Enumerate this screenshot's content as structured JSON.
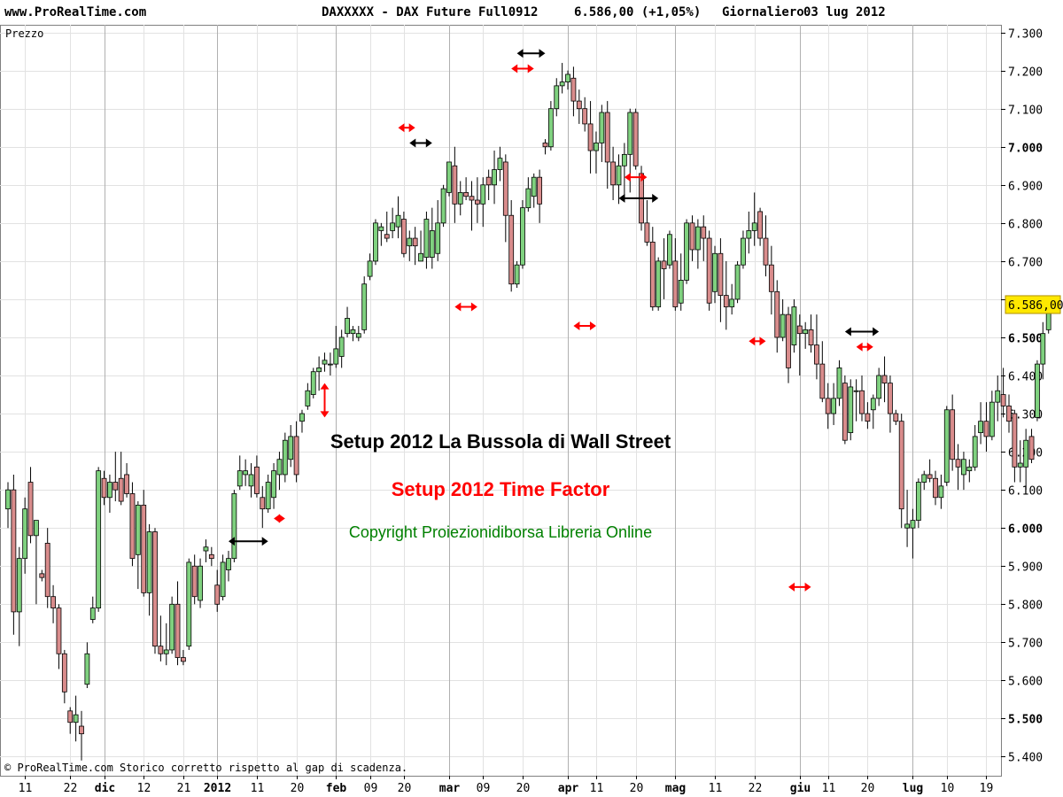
{
  "header": {
    "site": "www.ProRealTime.com",
    "instrument": "DAXXXXX - DAX Future Full0912",
    "quote": "6.586,00 (+1,05%)",
    "timeframe": "Giornaliero",
    "date": "03 lug 2012"
  },
  "overlay": {
    "line1": "Setup 2012 La Bussola di Wall Street",
    "line2": "Setup 2012 Time Factor",
    "line3": "Copyright Proiezionidiborsa Libreria Online"
  },
  "colors": {
    "up": "#7fd17f",
    "down": "#d98c8c",
    "wick": "#000000",
    "grid": "#b0b0b0",
    "red_marker": "#ff0000",
    "black_marker": "#000000",
    "price_tag": "#ffe800",
    "line1": "#000000",
    "line2": "#ff0000",
    "line3": "#008000"
  },
  "chart_data": {
    "type": "candlestick",
    "panel_label": "Prezzo",
    "footer_note": "© ProRealTime.com Storico corretto rispetto al gap di scadenza.",
    "ylim": [
      5350,
      7320
    ],
    "last_price_label": "6.586,00",
    "last_price": 6586,
    "y_ticks": [
      {
        "v": 7300,
        "label": "7.300",
        "bold": false
      },
      {
        "v": 7200,
        "label": "7.200",
        "bold": false
      },
      {
        "v": 7100,
        "label": "7.100",
        "bold": false
      },
      {
        "v": 7000,
        "label": "7.000",
        "bold": true
      },
      {
        "v": 6900,
        "label": "6.900",
        "bold": false
      },
      {
        "v": 6800,
        "label": "6.800",
        "bold": false
      },
      {
        "v": 6700,
        "label": "6.700",
        "bold": false
      },
      {
        "v": 6600,
        "label": "6.600",
        "bold": false
      },
      {
        "v": 6500,
        "label": "6.500",
        "bold": true
      },
      {
        "v": 6400,
        "label": "6.400",
        "bold": false
      },
      {
        "v": 6300,
        "label": "6.300",
        "bold": false
      },
      {
        "v": 6200,
        "label": "6.200",
        "bold": false
      },
      {
        "v": 6100,
        "label": "6.100",
        "bold": false
      },
      {
        "v": 6000,
        "label": "6.000",
        "bold": true
      },
      {
        "v": 5900,
        "label": "5.900",
        "bold": false
      },
      {
        "v": 5800,
        "label": "5.800",
        "bold": false
      },
      {
        "v": 5700,
        "label": "5.700",
        "bold": false
      },
      {
        "v": 5600,
        "label": "5.600",
        "bold": false
      },
      {
        "v": 5500,
        "label": "5.500",
        "bold": true
      },
      {
        "v": 5400,
        "label": "5.400",
        "bold": false
      }
    ],
    "x_ticks": [
      {
        "i": 3,
        "label": "11",
        "bold": false
      },
      {
        "i": 11,
        "label": "22",
        "bold": false
      },
      {
        "i": 17,
        "label": "dic",
        "bold": true
      },
      {
        "i": 24,
        "label": "12",
        "bold": false
      },
      {
        "i": 31,
        "label": "21",
        "bold": false
      },
      {
        "i": 37,
        "label": "2012",
        "bold": true
      },
      {
        "i": 44,
        "label": "11",
        "bold": false
      },
      {
        "i": 51,
        "label": "20",
        "bold": false
      },
      {
        "i": 58,
        "label": "feb",
        "bold": true
      },
      {
        "i": 64,
        "label": "09",
        "bold": false
      },
      {
        "i": 70,
        "label": "20",
        "bold": false
      },
      {
        "i": 78,
        "label": "mar",
        "bold": true
      },
      {
        "i": 84,
        "label": "09",
        "bold": false
      },
      {
        "i": 91,
        "label": "20",
        "bold": false
      },
      {
        "i": 99,
        "label": "apr",
        "bold": true
      },
      {
        "i": 104,
        "label": "11",
        "bold": false
      },
      {
        "i": 111,
        "label": "20",
        "bold": false
      },
      {
        "i": 118,
        "label": "mag",
        "bold": true
      },
      {
        "i": 125,
        "label": "11",
        "bold": false
      },
      {
        "i": 132,
        "label": "22",
        "bold": false
      },
      {
        "i": 140,
        "label": "giu",
        "bold": true
      },
      {
        "i": 145,
        "label": "11",
        "bold": false
      },
      {
        "i": 152,
        "label": "20",
        "bold": false
      },
      {
        "i": 160,
        "label": "lug",
        "bold": true
      },
      {
        "i": 166,
        "label": "10",
        "bold": false
      },
      {
        "i": 173,
        "label": "19",
        "bold": false
      }
    ],
    "month_separators": [
      17,
      37,
      58,
      78,
      99,
      118,
      140,
      160
    ],
    "bars_visible": 177,
    "candles": [
      [
        6050,
        6120,
        6000,
        6100
      ],
      [
        6100,
        6140,
        5720,
        5780
      ],
      [
        5780,
        5950,
        5690,
        5920
      ],
      [
        5920,
        6080,
        5880,
        6050
      ],
      [
        6120,
        6160,
        5960,
        5980
      ],
      [
        5980,
        6020,
        5800,
        6020
      ],
      [
        5880,
        5890,
        5860,
        5870
      ],
      [
        5960,
        6000,
        5790,
        5820
      ],
      [
        5820,
        5850,
        5750,
        5790
      ],
      [
        5790,
        5800,
        5630,
        5670
      ],
      [
        5670,
        5680,
        5540,
        5570
      ],
      [
        5520,
        5530,
        5460,
        5490
      ],
      [
        5490,
        5560,
        5440,
        5510
      ],
      [
        5480,
        5520,
        5390,
        5460
      ],
      [
        5590,
        5700,
        5580,
        5670
      ],
      [
        5760,
        5820,
        5750,
        5790
      ],
      [
        5790,
        6160,
        5780,
        6150
      ],
      [
        6130,
        6150,
        6060,
        6080
      ],
      [
        6080,
        6140,
        6040,
        6120
      ],
      [
        6120,
        6200,
        6070,
        6100
      ],
      [
        6130,
        6200,
        6060,
        6070
      ],
      [
        6140,
        6170,
        6080,
        6090
      ],
      [
        6090,
        6120,
        5900,
        5920
      ],
      [
        5930,
        6070,
        5840,
        6060
      ],
      [
        6060,
        6100,
        5820,
        5830
      ],
      [
        5830,
        6010,
        5770,
        5990
      ],
      [
        5990,
        6000,
        5670,
        5690
      ],
      [
        5690,
        5770,
        5650,
        5670
      ],
      [
        5670,
        5750,
        5640,
        5680
      ],
      [
        5680,
        5820,
        5670,
        5800
      ],
      [
        5800,
        5860,
        5640,
        5660
      ],
      [
        5660,
        5680,
        5640,
        5650
      ],
      [
        5690,
        5920,
        5680,
        5910
      ],
      [
        5900,
        5930,
        5800,
        5820
      ],
      [
        5810,
        5920,
        5790,
        5900
      ],
      [
        5940,
        5970,
        5910,
        5950
      ],
      [
        5930,
        5950,
        5900,
        5920
      ],
      [
        5850,
        5890,
        5780,
        5800
      ],
      [
        5820,
        5930,
        5810,
        5910
      ],
      [
        5890,
        5940,
        5860,
        5920
      ],
      [
        5920,
        6100,
        5910,
        6090
      ],
      [
        6110,
        6190,
        6100,
        6150
      ],
      [
        6140,
        6180,
        6110,
        6150
      ],
      [
        6110,
        6170,
        6080,
        6140
      ],
      [
        6160,
        6190,
        6080,
        6090
      ],
      [
        6080,
        6110,
        6000,
        6050
      ],
      [
        6050,
        6140,
        6040,
        6120
      ],
      [
        6080,
        6170,
        6050,
        6150
      ],
      [
        6140,
        6200,
        6100,
        6180
      ],
      [
        6140,
        6250,
        6120,
        6230
      ],
      [
        6180,
        6270,
        6160,
        6240
      ],
      [
        6240,
        6280,
        6120,
        6140
      ],
      [
        6280,
        6310,
        6250,
        6300
      ],
      [
        6320,
        6380,
        6310,
        6360
      ],
      [
        6350,
        6420,
        6340,
        6410
      ],
      [
        6410,
        6450,
        6360,
        6420
      ],
      [
        6430,
        6460,
        6410,
        6440
      ],
      [
        6430,
        6460,
        6400,
        6430
      ],
      [
        6430,
        6530,
        6420,
        6470
      ],
      [
        6450,
        6520,
        6420,
        6500
      ],
      [
        6510,
        6580,
        6500,
        6550
      ],
      [
        6510,
        6530,
        6490,
        6520
      ],
      [
        6500,
        6530,
        6490,
        6510
      ],
      [
        6520,
        6660,
        6510,
        6640
      ],
      [
        6660,
        6720,
        6650,
        6700
      ],
      [
        6700,
        6810,
        6690,
        6800
      ],
      [
        6780,
        6800,
        6740,
        6790
      ],
      [
        6770,
        6830,
        6750,
        6760
      ],
      [
        6780,
        6840,
        6760,
        6800
      ],
      [
        6790,
        6870,
        6760,
        6820
      ],
      [
        6810,
        6830,
        6710,
        6720
      ],
      [
        6740,
        6780,
        6700,
        6760
      ],
      [
        6760,
        6790,
        6690,
        6740
      ],
      [
        6700,
        6780,
        6700,
        6720
      ],
      [
        6710,
        6830,
        6680,
        6810
      ],
      [
        6710,
        6840,
        6680,
        6780
      ],
      [
        6720,
        6860,
        6700,
        6800
      ],
      [
        6800,
        6900,
        6790,
        6890
      ],
      [
        6880,
        6960,
        6870,
        6960
      ],
      [
        6950,
        7000,
        6800,
        6850
      ],
      [
        6850,
        6910,
        6820,
        6880
      ],
      [
        6880,
        6920,
        6860,
        6870
      ],
      [
        6870,
        6910,
        6780,
        6860
      ],
      [
        6860,
        6920,
        6800,
        6850
      ],
      [
        6850,
        6920,
        6790,
        6900
      ],
      [
        6920,
        6940,
        6860,
        6900
      ],
      [
        6900,
        6990,
        6850,
        6940
      ],
      [
        6940,
        7000,
        6910,
        6970
      ],
      [
        6960,
        6980,
        6750,
        6820
      ],
      [
        6820,
        6860,
        6620,
        6640
      ],
      [
        6640,
        6700,
        6630,
        6690
      ],
      [
        6690,
        6860,
        6680,
        6840
      ],
      [
        6840,
        6920,
        6830,
        6890
      ],
      [
        6870,
        6930,
        6840,
        6920
      ],
      [
        6920,
        6940,
        6800,
        6850
      ],
      [
        7010,
        7020,
        6980,
        7000
      ],
      [
        7000,
        7120,
        6990,
        7100
      ],
      [
        7100,
        7180,
        7080,
        7160
      ],
      [
        7160,
        7220,
        7140,
        7170
      ],
      [
        7170,
        7200,
        7150,
        7190
      ],
      [
        7180,
        7210,
        7080,
        7120
      ],
      [
        7120,
        7150,
        7060,
        7100
      ],
      [
        7100,
        7130,
        7040,
        7060
      ],
      [
        7060,
        7120,
        6930,
        6990
      ],
      [
        6990,
        7040,
        6930,
        7010
      ],
      [
        7010,
        7110,
        6960,
        7090
      ],
      [
        7090,
        7120,
        6890,
        6960
      ],
      [
        6960,
        7000,
        6860,
        6900
      ],
      [
        6900,
        6980,
        6850,
        6950
      ],
      [
        6950,
        7010,
        6870,
        6980
      ],
      [
        6980,
        7100,
        6880,
        7090
      ],
      [
        7090,
        7100,
        6940,
        6950
      ],
      [
        6930,
        6950,
        6780,
        6800
      ],
      [
        6800,
        6860,
        6740,
        6750
      ],
      [
        6750,
        6790,
        6570,
        6580
      ],
      [
        6580,
        6710,
        6570,
        6700
      ],
      [
        6700,
        6760,
        6600,
        6680
      ],
      [
        6690,
        6780,
        6680,
        6770
      ],
      [
        6700,
        6760,
        6570,
        6580
      ],
      [
        6590,
        6720,
        6570,
        6650
      ],
      [
        6650,
        6810,
        6640,
        6800
      ],
      [
        6800,
        6820,
        6700,
        6730
      ],
      [
        6730,
        6810,
        6680,
        6790
      ],
      [
        6790,
        6820,
        6700,
        6760
      ],
      [
        6760,
        6780,
        6570,
        6590
      ],
      [
        6620,
        6740,
        6590,
        6720
      ],
      [
        6720,
        6760,
        6540,
        6610
      ],
      [
        6610,
        6700,
        6520,
        6580
      ],
      [
        6580,
        6640,
        6560,
        6600
      ],
      [
        6600,
        6700,
        6590,
        6690
      ],
      [
        6690,
        6780,
        6680,
        6760
      ],
      [
        6760,
        6830,
        6720,
        6780
      ],
      [
        6780,
        6880,
        6740,
        6800
      ],
      [
        6830,
        6840,
        6740,
        6760
      ],
      [
        6760,
        6820,
        6660,
        6690
      ],
      [
        6690,
        6740,
        6560,
        6620
      ],
      [
        6620,
        6650,
        6460,
        6500
      ],
      [
        6500,
        6600,
        6490,
        6560
      ],
      [
        6560,
        6580,
        6380,
        6420
      ],
      [
        6480,
        6600,
        6460,
        6580
      ],
      [
        6530,
        6560,
        6400,
        6510
      ],
      [
        6510,
        6540,
        6470,
        6520
      ],
      [
        6520,
        6560,
        6460,
        6480
      ],
      [
        6480,
        6560,
        6390,
        6430
      ],
      [
        6430,
        6490,
        6330,
        6340
      ],
      [
        6340,
        6380,
        6260,
        6300
      ],
      [
        6300,
        6380,
        6270,
        6340
      ],
      [
        6340,
        6440,
        6320,
        6420
      ],
      [
        6380,
        6400,
        6220,
        6230
      ],
      [
        6250,
        6390,
        6230,
        6370
      ],
      [
        6360,
        6390,
        6280,
        6360
      ],
      [
        6360,
        6400,
        6280,
        6300
      ],
      [
        6300,
        6330,
        6260,
        6280
      ],
      [
        6310,
        6350,
        6260,
        6340
      ],
      [
        6340,
        6420,
        6320,
        6400
      ],
      [
        6400,
        6450,
        6330,
        6380
      ],
      [
        6380,
        6400,
        6250,
        6300
      ],
      [
        6300,
        6310,
        6270,
        6280
      ],
      [
        6280,
        6300,
        6000,
        6050
      ],
      [
        6000,
        6100,
        5950,
        6010
      ],
      [
        6000,
        6050,
        5920,
        6020
      ],
      [
        6020,
        6130,
        6000,
        6120
      ],
      [
        6120,
        6150,
        6100,
        6140
      ],
      [
        6140,
        6180,
        6120,
        6130
      ],
      [
        6130,
        6150,
        6060,
        6080
      ],
      [
        6080,
        6140,
        6050,
        6110
      ],
      [
        6120,
        6320,
        6110,
        6310
      ],
      [
        6310,
        6350,
        6150,
        6180
      ],
      [
        6180,
        6220,
        6100,
        6160
      ],
      [
        6140,
        6200,
        6100,
        6180
      ],
      [
        6150,
        6180,
        6120,
        6160
      ],
      [
        6160,
        6270,
        6150,
        6240
      ],
      [
        6250,
        6330,
        6220,
        6280
      ],
      [
        6280,
        6330,
        6200,
        6240
      ],
      [
        6240,
        6360,
        6230,
        6330
      ],
      [
        6330,
        6400,
        6280,
        6360
      ],
      [
        6350,
        6420,
        6290,
        6320
      ],
      [
        6320,
        6350,
        6250,
        6280
      ],
      [
        6300,
        6310,
        6120,
        6160
      ],
      [
        6160,
        6230,
        6120,
        6170
      ],
      [
        6160,
        6260,
        6100,
        6230
      ],
      [
        6240,
        6260,
        6170,
        6180
      ],
      [
        6290,
        6440,
        6280,
        6430
      ],
      [
        6430,
        6540,
        6390,
        6510
      ],
      [
        6520,
        6600,
        6510,
        6586
      ]
    ],
    "time_arrows": [
      {
        "color": "red",
        "type": "h",
        "i0": 69,
        "i1": 72,
        "y": 7050
      },
      {
        "color": "black",
        "type": "h",
        "i0": 71,
        "i1": 75,
        "y": 7010
      },
      {
        "color": "red",
        "type": "h",
        "i0": 79,
        "i1": 83,
        "y": 6580
      },
      {
        "color": "red",
        "type": "h",
        "i0": 89,
        "i1": 93,
        "y": 7205
      },
      {
        "color": "black",
        "type": "h",
        "i0": 90,
        "i1": 95,
        "y": 7245
      },
      {
        "color": "red",
        "type": "h",
        "i0": 100,
        "i1": 104,
        "y": 6530
      },
      {
        "color": "red",
        "type": "h",
        "i0": 109,
        "i1": 113,
        "y": 6920
      },
      {
        "color": "black",
        "type": "h",
        "i0": 108,
        "i1": 115,
        "y": 6865
      },
      {
        "color": "red",
        "type": "h",
        "i0": 131,
        "i1": 134,
        "y": 6490
      },
      {
        "color": "red",
        "type": "h",
        "i0": 138,
        "i1": 142,
        "y": 5845
      },
      {
        "color": "black",
        "type": "h",
        "i0": 148,
        "i1": 154,
        "y": 6515
      },
      {
        "color": "red",
        "type": "h",
        "i0": 150,
        "i1": 153,
        "y": 6475
      },
      {
        "color": "black",
        "type": "h",
        "i0": 39,
        "i1": 46,
        "y": 5965
      },
      {
        "color": "red",
        "type": "h",
        "i0": 47,
        "i1": 49,
        "y": 6025
      },
      {
        "color": "red",
        "type": "v",
        "i": 56,
        "y0": 6290,
        "y1": 6380
      }
    ]
  }
}
